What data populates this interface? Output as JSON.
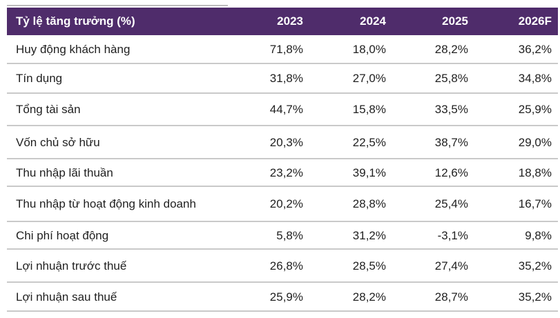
{
  "table": {
    "header": {
      "label": "Tỷ lệ tăng trưởng (%)",
      "years": [
        "2023",
        "2024",
        "2025",
        "2026F"
      ]
    },
    "rows": [
      {
        "label": "Huy động khách hàng",
        "values": [
          "71,8%",
          "18,0%",
          "28,2%",
          "36,2%"
        ]
      },
      {
        "label": "Tín dụng",
        "values": [
          "31,8%",
          "27,0%",
          "25,8%",
          "34,8%"
        ]
      },
      {
        "label": "Tổng tài sản",
        "values": [
          "44,7%",
          "15,8%",
          "33,5%",
          "25,9%"
        ]
      },
      {
        "label": "Vốn chủ sở hữu",
        "values": [
          "20,3%",
          "22,5%",
          "38,7%",
          "29,0%"
        ]
      },
      {
        "label": "Thu nhập lãi thuần",
        "values": [
          "23,2%",
          "39,1%",
          "12,6%",
          "18,8%"
        ]
      },
      {
        "label": "Thu nhập từ hoạt động kinh doanh",
        "values": [
          "20,2%",
          "28,8%",
          "25,4%",
          "16,7%"
        ]
      },
      {
        "label": "Chi phí hoạt động",
        "values": [
          "5,8%",
          "31,2%",
          "-3,1%",
          "9,8%"
        ]
      },
      {
        "label": "Lợi nhuận trước thuế",
        "values": [
          "26,8%",
          "28,5%",
          "27,4%",
          "35,2%"
        ]
      },
      {
        "label": "Lợi nhuận sau thuế",
        "values": [
          "25,9%",
          "28,2%",
          "28,7%",
          "35,2%"
        ]
      }
    ]
  },
  "colors": {
    "header_bg": "#4f2c6b",
    "header_text": "#ffffff",
    "row_divider": "#c9c9c9"
  }
}
